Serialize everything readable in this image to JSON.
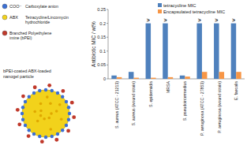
{
  "chart_data": {
    "type": "bar",
    "y_label": "Antibiotic MIC / wt%",
    "categories": [
      "S. aureus (ATCC - 21213)",
      "S. aureus (wound strain)",
      "S. epidermidis",
      "MRSA",
      "S. pseudointermedius",
      "P. aeruginosa (ATCC - 27853)",
      "P. aeruginosa (wound strain)",
      "E. faecalis"
    ],
    "series": [
      {
        "name": "tetracycline MIC",
        "color": "#4f81bd",
        "values": [
          0.012,
          0.025,
          0.2,
          0.2,
          0.012,
          0.2,
          0.2,
          0.2
        ]
      },
      {
        "name": "Encapsulated tetracycline MIC",
        "color": "#f79646",
        "values": [
          0.006,
          0.004,
          0.004,
          0.006,
          0.008,
          0.025,
          0.025,
          0.025
        ]
      }
    ],
    "annotations": [
      {
        "text": ">",
        "category": "S. epidermidis"
      },
      {
        "text": ">",
        "category": "MRSA"
      },
      {
        "text": ">",
        "category": "P. aeruginosa (ATCC - 27853)"
      },
      {
        "text": ">",
        "category": "P. aeruginosa (wound strain)"
      },
      {
        "text": ">",
        "category": "E. faecalis"
      }
    ],
    "ylim": [
      0,
      0.25
    ],
    "yticks": [
      0,
      0.05,
      0.1,
      0.15,
      0.2,
      0.25
    ],
    "grid": false,
    "legend": "top"
  },
  "diagram": {
    "legend": [
      {
        "symbol": "COO⁻",
        "label": "Carboxylate anion",
        "color": "#3b6fd4"
      },
      {
        "symbol": "ABX",
        "label": "Tetracycline/Lincomycin hydrochloride",
        "color": "#f2d21b"
      },
      {
        "label": "Branched Polyethylene imine (bPEI)",
        "color": "#c0392b"
      }
    ],
    "caption": "bPEI-coated ABX-loaded nanogel particle"
  }
}
